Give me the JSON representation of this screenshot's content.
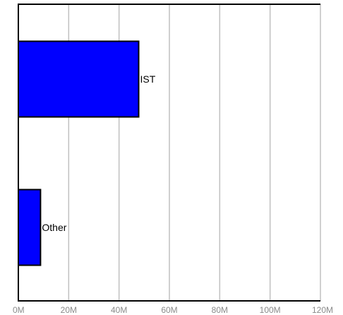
{
  "chart_data": {
    "type": "bar",
    "orientation": "horizontal",
    "categories": [
      "IST",
      "Other"
    ],
    "values": [
      47800000,
      8800000
    ],
    "xlim": [
      0,
      120000000
    ],
    "x_ticks": [
      {
        "value": 0,
        "label": "0M"
      },
      {
        "value": 20000000,
        "label": "20M"
      },
      {
        "value": 40000000,
        "label": "40M"
      },
      {
        "value": 60000000,
        "label": "60M"
      },
      {
        "value": 80000000,
        "label": "80M"
      },
      {
        "value": 100000000,
        "label": "100M"
      },
      {
        "value": 120000000,
        "label": "120M"
      }
    ],
    "grid": true,
    "title": "",
    "xlabel": "",
    "ylabel": "",
    "colors": {
      "bar": "#0000ff",
      "bar_border": "#000000",
      "grid": "#c0c0c0",
      "axis": "#000000",
      "tick_text": "#8a8a8a"
    }
  }
}
